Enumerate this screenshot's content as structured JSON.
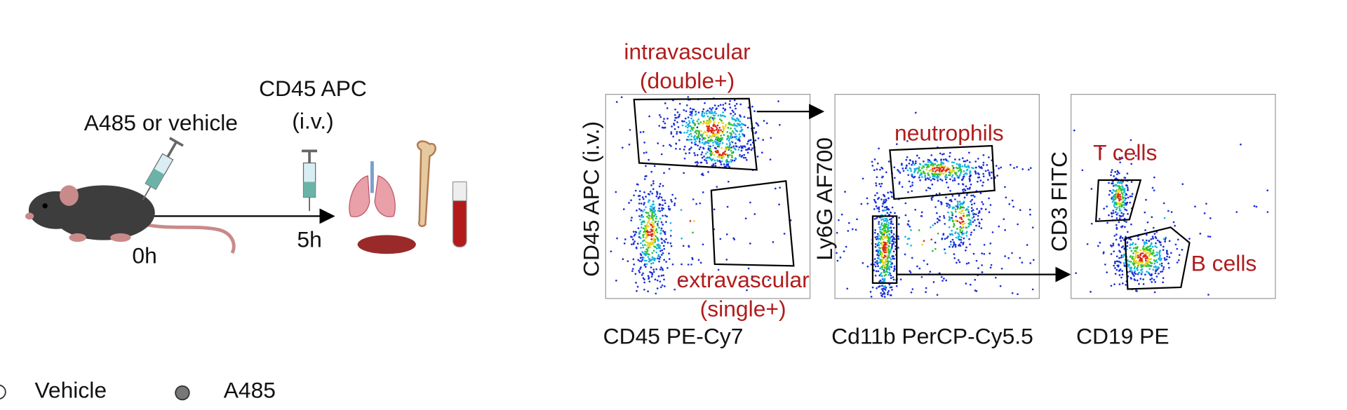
{
  "experiment": {
    "treatment": "A485 or vehicle",
    "stain": "CD45 APC",
    "stain_route": "(i.v.)",
    "time_start": "0h",
    "time_end": "5h"
  },
  "panels": [
    {
      "y_label": "CD45 APC (i.v.)",
      "x_label": "CD45 PE-Cy7",
      "gates": [
        {
          "label": [
            "intravascular",
            "(double+)"
          ]
        },
        {
          "label": [
            "extravascular",
            "(single+)"
          ]
        }
      ]
    },
    {
      "y_label": "Ly6G AF700",
      "x_label": "Cd11b PerCP-Cy5.5",
      "gates": [
        {
          "label": [
            "neutrophils"
          ]
        }
      ]
    },
    {
      "y_label": "CD3 FITC",
      "x_label": "CD19 PE",
      "gates": [
        {
          "label": [
            "T cells"
          ]
        },
        {
          "label": [
            "B cells"
          ]
        }
      ]
    }
  ],
  "legend": [
    "Vehicle",
    "A485"
  ]
}
